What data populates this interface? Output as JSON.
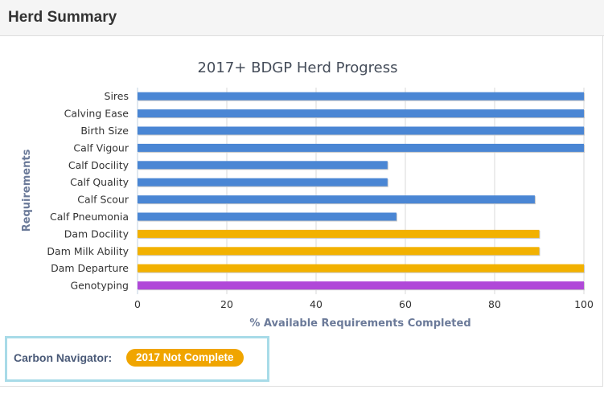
{
  "panel": {
    "title": "Herd Summary"
  },
  "carbon": {
    "label": "Carbon Navigator:",
    "status": "2017 Not Complete",
    "status_color": "#f0a500"
  },
  "chart_data": {
    "type": "bar",
    "orientation": "horizontal",
    "title": "2017+ BDGP Herd Progress",
    "xlabel": "% Available Requirements Completed",
    "ylabel": "Requirements",
    "xlim": [
      0,
      100
    ],
    "ticks": [
      0,
      20,
      40,
      60,
      80,
      100
    ],
    "grid": true,
    "categories": [
      "Sires",
      "Calving Ease",
      "Birth Size",
      "Calf Vigour",
      "Calf Docility",
      "Calf Quality",
      "Calf Scour",
      "Calf Pneumonia",
      "Dam Docility",
      "Dam Milk Ability",
      "Dam Departure",
      "Genotyping"
    ],
    "values": [
      100,
      100,
      100,
      100,
      56,
      56,
      89,
      58,
      90,
      90,
      100,
      100
    ],
    "colors": [
      "#4a86d4",
      "#4a86d4",
      "#4a86d4",
      "#4a86d4",
      "#4a86d4",
      "#4a86d4",
      "#4a86d4",
      "#4a86d4",
      "#f2b100",
      "#f2b100",
      "#f2b100",
      "#b048d8"
    ]
  }
}
